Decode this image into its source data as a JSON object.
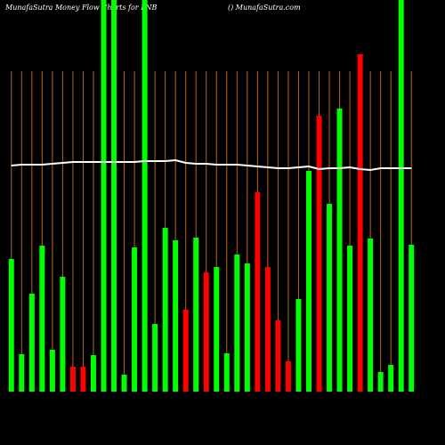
{
  "chart_data": {
    "type": "bar",
    "title": "MunafaSutra  Money Flow Charts for PNB",
    "subtitle": "() MunafaSutra.com",
    "categories": [
      null,
      null,
      null,
      null,
      null,
      null,
      null,
      null,
      null,
      null,
      null,
      null,
      null,
      null,
      null,
      null,
      null,
      null,
      null,
      null,
      null,
      null,
      null,
      null,
      null,
      null,
      null,
      null,
      null,
      null,
      null,
      null,
      null,
      null,
      null,
      null,
      null,
      null,
      null,
      null
    ],
    "values": [
      149,
      42,
      110,
      164,
      47,
      129,
      28,
      28,
      41,
      440,
      440,
      19,
      162,
      440,
      76,
      184,
      170,
      92,
      173,
      134,
      140,
      43,
      154,
      144,
      224,
      140,
      80,
      34,
      104,
      248,
      310,
      211,
      318,
      164,
      379,
      172,
      22,
      30,
      440,
      165
    ],
    "colors": [
      "#00ff00",
      "#00ff00",
      "#00ff00",
      "#00ff00",
      "#00ff00",
      "#00ff00",
      "#ff0000",
      "#ff0000",
      "#00ff00",
      "#00ff00",
      "#00ff00",
      "#00ff00",
      "#00ff00",
      "#00ff00",
      "#00ff00",
      "#00ff00",
      "#00ff00",
      "#ff0000",
      "#00ff00",
      "#ff0000",
      "#00ff00",
      "#00ff00",
      "#00ff00",
      "#00ff00",
      "#ff0000",
      "#ff0000",
      "#ff0000",
      "#ff0000",
      "#00ff00",
      "#00ff00",
      "#ff0000",
      "#00ff00",
      "#00ff00",
      "#00ff00",
      "#ff0000",
      "#00ff00",
      "#00ff00",
      "#00ff00",
      "#00ff00",
      "#00ff00"
    ],
    "line": {
      "color": "#ffffff",
      "values": [
        254,
        255,
        255,
        255,
        256,
        257,
        258,
        258,
        258,
        258,
        258,
        258,
        258,
        259,
        259,
        259,
        260,
        257,
        256,
        256,
        255,
        255,
        255,
        254,
        253,
        252,
        251,
        251,
        252,
        253,
        250,
        251,
        251,
        252,
        250,
        249,
        251,
        251,
        251,
        251
      ]
    },
    "ylim": [
      0,
      440
    ],
    "grid_color": "#b8641e"
  }
}
